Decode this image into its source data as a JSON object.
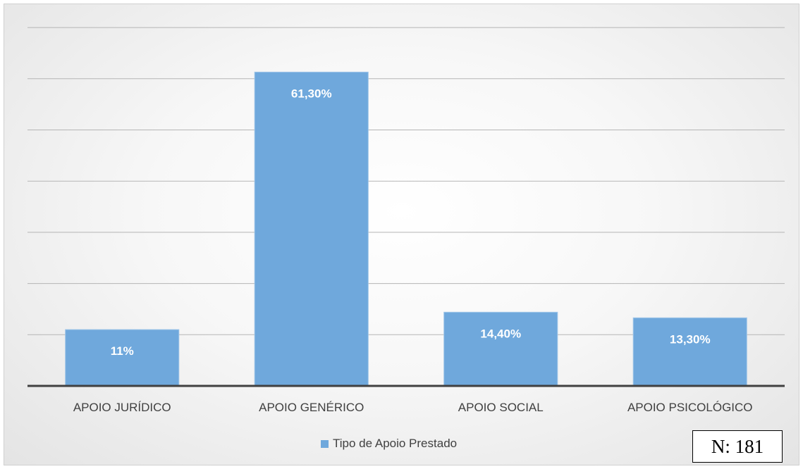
{
  "chart_data": {
    "type": "bar",
    "categories": [
      "APOIO JURÍDICO",
      "APOIO GENÉRICO",
      "APOIO SOCIAL",
      "APOIO PSICOLÓGICO"
    ],
    "series": [
      {
        "name": "Tipo de Apoio Prestado",
        "values": [
          11,
          61.3,
          14.4,
          13.3
        ],
        "labels": [
          "11%",
          "61,30%",
          "14,40%",
          "13,30%"
        ]
      }
    ],
    "ylim": [
      0,
      70
    ],
    "grid": true,
    "legend": "bottom",
    "bar_color": "#6fa8dc",
    "bar_border_color": "#9fc5e8",
    "gridline_color": "#b5b5b5",
    "axis_color": "#404040"
  },
  "annotation": {
    "sample_size": "N: 181"
  }
}
